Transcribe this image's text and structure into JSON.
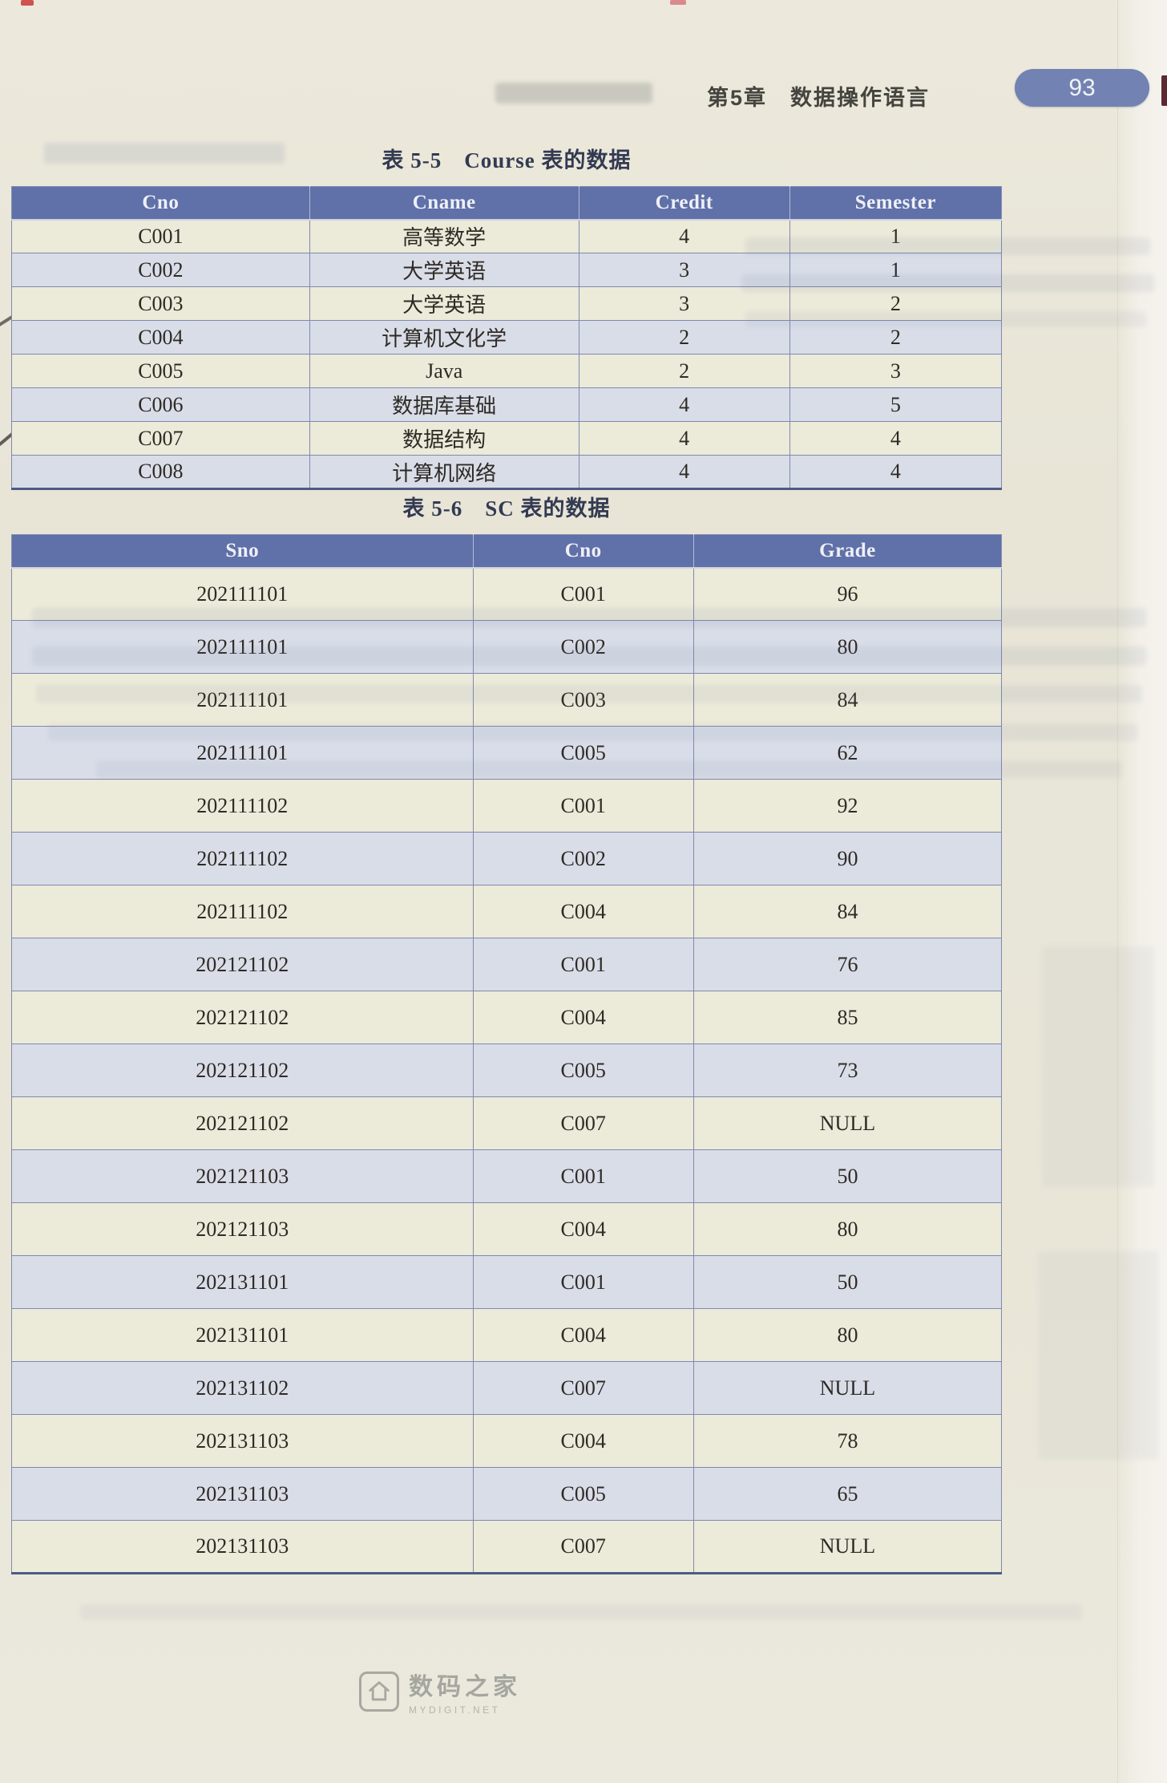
{
  "page": {
    "chapter_title": "第5章　数据操作语言",
    "page_number": "93"
  },
  "tables": [
    {
      "caption_label": "表 5-5",
      "caption_title": "Course 表的数据",
      "columns": [
        "Cno",
        "Cname",
        "Credit",
        "Semester"
      ],
      "rows": [
        [
          "C001",
          "高等数学",
          "4",
          "1"
        ],
        [
          "C002",
          "大学英语",
          "3",
          "1"
        ],
        [
          "C003",
          "大学英语",
          "3",
          "2"
        ],
        [
          "C004",
          "计算机文化学",
          "2",
          "2"
        ],
        [
          "C005",
          "Java",
          "2",
          "3"
        ],
        [
          "C006",
          "数据库基础",
          "4",
          "5"
        ],
        [
          "C007",
          "数据结构",
          "4",
          "4"
        ],
        [
          "C008",
          "计算机网络",
          "4",
          "4"
        ]
      ]
    },
    {
      "caption_label": "表 5-6",
      "caption_title": "SC 表的数据",
      "columns": [
        "Sno",
        "Cno",
        "Grade"
      ],
      "rows": [
        [
          "202111101",
          "C001",
          "96"
        ],
        [
          "202111101",
          "C002",
          "80"
        ],
        [
          "202111101",
          "C003",
          "84"
        ],
        [
          "202111101",
          "C005",
          "62"
        ],
        [
          "202111102",
          "C001",
          "92"
        ],
        [
          "202111102",
          "C002",
          "90"
        ],
        [
          "202111102",
          "C004",
          "84"
        ],
        [
          "202121102",
          "C001",
          "76"
        ],
        [
          "202121102",
          "C004",
          "85"
        ],
        [
          "202121102",
          "C005",
          "73"
        ],
        [
          "202121102",
          "C007",
          "NULL"
        ],
        [
          "202121103",
          "C001",
          "50"
        ],
        [
          "202121103",
          "C004",
          "80"
        ],
        [
          "202131101",
          "C001",
          "50"
        ],
        [
          "202131101",
          "C004",
          "80"
        ],
        [
          "202131102",
          "C007",
          "NULL"
        ],
        [
          "202131103",
          "C004",
          "78"
        ],
        [
          "202131103",
          "C005",
          "65"
        ],
        [
          "202131103",
          "C007",
          "NULL"
        ]
      ]
    }
  ],
  "watermark": {
    "icon": "house-icon",
    "title": "数码之家",
    "subtitle": "MYDIGIT.NET"
  },
  "colors": {
    "table_header_bg": "#6070a8",
    "page_badge_bg": "#7282b2",
    "row_base": "#ecead9",
    "row_tint": "#d9dde8",
    "caption_color": "#333a52"
  }
}
